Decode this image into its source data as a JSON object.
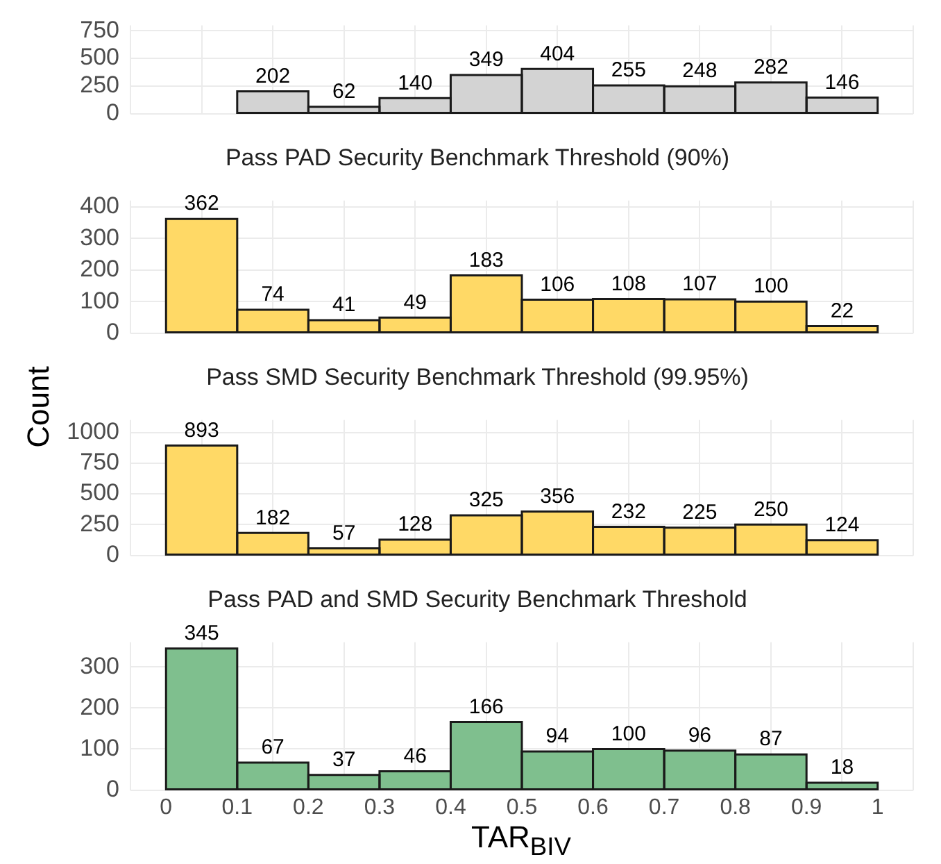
{
  "chart_data": [
    {
      "type": "histogram",
      "bins": [
        0,
        0.1,
        0.2,
        0.3,
        0.4,
        0.5,
        0.6,
        0.7,
        0.8,
        0.9,
        1
      ],
      "values": [
        null,
        202,
        62,
        140,
        349,
        404,
        255,
        248,
        282,
        146
      ],
      "color": "#d3d3d3",
      "xlim": [
        -0.05,
        1.05
      ],
      "xticks": [
        0,
        0.1,
        0.2,
        0.3,
        0.4,
        0.5,
        0.6,
        0.7,
        0.8,
        0.9,
        1
      ],
      "ylim": [
        0,
        800
      ],
      "yticks": [
        0,
        250,
        500,
        750
      ],
      "grid": true,
      "data_labels": true,
      "tick_labels": "y"
    },
    {
      "type": "histogram",
      "title": "Pass PAD Security Benchmark Threshold (90%)",
      "ylabel": "Count",
      "bins": [
        0,
        0.1,
        0.2,
        0.3,
        0.4,
        0.5,
        0.6,
        0.7,
        0.8,
        0.9,
        1
      ],
      "values": [
        362,
        74,
        41,
        49,
        183,
        106,
        108,
        107,
        100,
        22
      ],
      "color": "#ffd966",
      "xlim": [
        -0.05,
        1.05
      ],
      "xticks": [
        0,
        0.1,
        0.2,
        0.3,
        0.4,
        0.5,
        0.6,
        0.7,
        0.8,
        0.9,
        1
      ],
      "ylim": [
        0,
        420
      ],
      "yticks": [
        0,
        100,
        200,
        300,
        400
      ],
      "grid": true,
      "data_labels": true,
      "tick_labels": "y"
    },
    {
      "type": "histogram",
      "title": "Pass SMD Security Benchmark Threshold (99.95%)",
      "bins": [
        0,
        0.1,
        0.2,
        0.3,
        0.4,
        0.5,
        0.6,
        0.7,
        0.8,
        0.9,
        1
      ],
      "values": [
        893,
        182,
        57,
        128,
        325,
        356,
        232,
        225,
        250,
        124
      ],
      "color": "#ffd966",
      "xlim": [
        -0.05,
        1.05
      ],
      "xticks": [
        0,
        0.1,
        0.2,
        0.3,
        0.4,
        0.5,
        0.6,
        0.7,
        0.8,
        0.9,
        1
      ],
      "ylim": [
        0,
        1100
      ],
      "yticks": [
        0,
        250,
        500,
        750,
        1000
      ],
      "grid": true,
      "data_labels": true,
      "tick_labels": "y"
    },
    {
      "type": "histogram",
      "title": "Pass PAD and SMD Security Benchmark Threshold",
      "xlabel": "TAR$_{BIV}$",
      "bins": [
        0,
        0.1,
        0.2,
        0.3,
        0.4,
        0.5,
        0.6,
        0.7,
        0.8,
        0.9,
        1
      ],
      "values": [
        345,
        67,
        37,
        46,
        166,
        94,
        100,
        96,
        87,
        18
      ],
      "color": "#7fbf8e",
      "xlim": [
        -0.05,
        1.05
      ],
      "xticks": [
        0,
        0.1,
        0.2,
        0.3,
        0.4,
        0.5,
        0.6,
        0.7,
        0.8,
        0.9,
        1
      ],
      "ylim": [
        0,
        360
      ],
      "yticks": [
        0,
        100,
        200,
        300
      ],
      "grid": true,
      "data_labels": true
    }
  ]
}
